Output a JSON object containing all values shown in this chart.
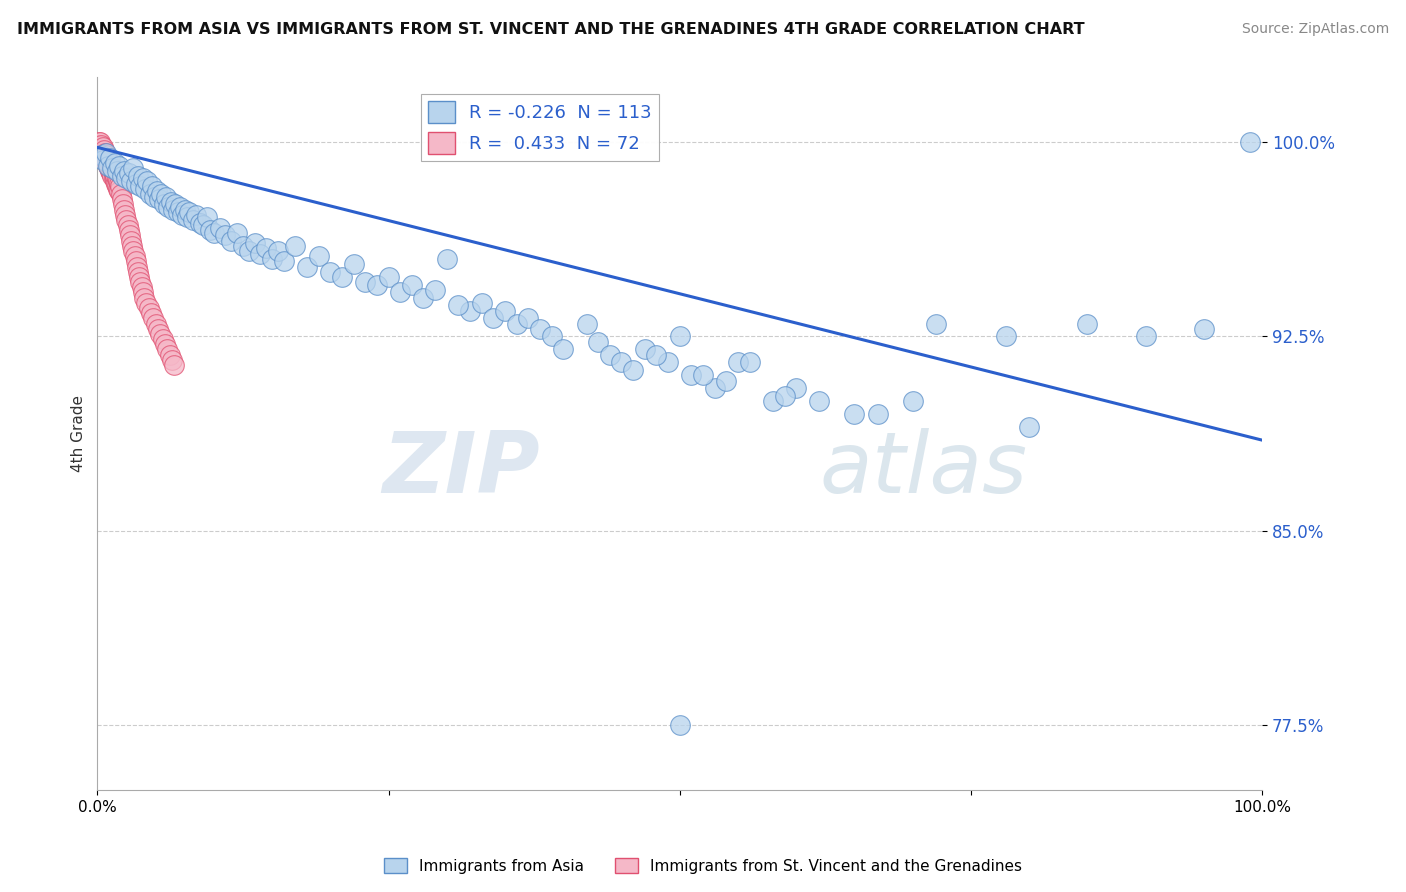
{
  "title": "IMMIGRANTS FROM ASIA VS IMMIGRANTS FROM ST. VINCENT AND THE GRENADINES 4TH GRADE CORRELATION CHART",
  "source": "Source: ZipAtlas.com",
  "ylabel": "4th Grade",
  "xlim": [
    0.0,
    100.0
  ],
  "ylim": [
    75.0,
    102.5
  ],
  "yticks": [
    77.5,
    85.0,
    92.5,
    100.0
  ],
  "ytick_labels": [
    "77.5%",
    "85.0%",
    "92.5%",
    "100.0%"
  ],
  "blue_R": -0.226,
  "blue_N": 113,
  "pink_R": 0.433,
  "pink_N": 72,
  "blue_color": "#b8d4ed",
  "blue_edge": "#5b8fc9",
  "pink_color": "#f5b8c8",
  "pink_edge": "#e05070",
  "trend_color": "#2b5fcc",
  "watermark_zip": "ZIP",
  "watermark_atlas": "atlas",
  "blue_scatter_x": [
    0.3,
    0.5,
    0.7,
    0.9,
    1.1,
    1.3,
    1.5,
    1.7,
    1.9,
    2.1,
    2.3,
    2.5,
    2.7,
    2.9,
    3.1,
    3.3,
    3.5,
    3.7,
    3.9,
    4.1,
    4.3,
    4.5,
    4.7,
    4.9,
    5.1,
    5.3,
    5.5,
    5.7,
    5.9,
    6.1,
    6.3,
    6.5,
    6.7,
    6.9,
    7.1,
    7.3,
    7.5,
    7.7,
    7.9,
    8.2,
    8.5,
    8.8,
    9.1,
    9.4,
    9.7,
    10.0,
    10.5,
    11.0,
    11.5,
    12.0,
    12.5,
    13.0,
    13.5,
    14.0,
    14.5,
    15.0,
    15.5,
    16.0,
    17.0,
    18.0,
    19.0,
    20.0,
    21.0,
    22.0,
    23.0,
    24.0,
    25.0,
    26.0,
    27.0,
    28.0,
    30.0,
    32.0,
    33.0,
    34.0,
    35.0,
    36.0,
    37.0,
    38.0,
    39.0,
    40.0,
    42.0,
    43.0,
    44.0,
    45.0,
    47.0,
    49.0,
    51.0,
    53.0,
    55.0,
    58.0,
    60.0,
    65.0,
    70.0,
    80.0,
    85.0,
    90.0,
    95.0,
    99.0,
    29.0,
    31.0,
    46.0,
    48.0,
    50.0,
    52.0,
    54.0,
    56.0,
    59.0,
    62.0,
    67.0,
    72.0,
    78.0
  ],
  "blue_scatter_y": [
    99.5,
    99.3,
    99.6,
    99.1,
    99.4,
    99.0,
    99.2,
    98.9,
    99.1,
    98.7,
    98.9,
    98.6,
    98.8,
    98.5,
    99.0,
    98.4,
    98.7,
    98.3,
    98.6,
    98.2,
    98.5,
    98.0,
    98.3,
    97.9,
    98.1,
    97.8,
    98.0,
    97.6,
    97.9,
    97.5,
    97.7,
    97.4,
    97.6,
    97.3,
    97.5,
    97.2,
    97.4,
    97.1,
    97.3,
    97.0,
    97.2,
    96.9,
    96.8,
    97.1,
    96.6,
    96.5,
    96.7,
    96.4,
    96.2,
    96.5,
    96.0,
    95.8,
    96.1,
    95.7,
    95.9,
    95.5,
    95.8,
    95.4,
    96.0,
    95.2,
    95.6,
    95.0,
    94.8,
    95.3,
    94.6,
    94.5,
    94.8,
    94.2,
    94.5,
    94.0,
    95.5,
    93.5,
    93.8,
    93.2,
    93.5,
    93.0,
    93.2,
    92.8,
    92.5,
    92.0,
    93.0,
    92.3,
    91.8,
    91.5,
    92.0,
    91.5,
    91.0,
    90.5,
    91.5,
    90.0,
    90.5,
    89.5,
    90.0,
    89.0,
    93.0,
    92.5,
    92.8,
    100.0,
    94.3,
    93.7,
    91.2,
    91.8,
    92.5,
    91.0,
    90.8,
    91.5,
    90.2,
    90.0,
    89.5,
    93.0,
    92.5
  ],
  "pink_scatter_x": [
    0.1,
    0.15,
    0.2,
    0.25,
    0.3,
    0.35,
    0.4,
    0.45,
    0.5,
    0.55,
    0.6,
    0.65,
    0.7,
    0.75,
    0.8,
    0.85,
    0.9,
    0.95,
    1.0,
    1.05,
    1.1,
    1.15,
    1.2,
    1.25,
    1.3,
    1.35,
    1.4,
    1.45,
    1.5,
    1.55,
    1.6,
    1.65,
    1.7,
    1.75,
    1.8,
    1.85,
    1.9,
    1.95,
    2.0,
    2.1,
    2.2,
    2.3,
    2.4,
    2.5,
    2.6,
    2.7,
    2.8,
    2.9,
    3.0,
    3.1,
    3.2,
    3.3,
    3.4,
    3.5,
    3.6,
    3.7,
    3.8,
    3.9,
    4.0,
    4.2,
    4.4,
    4.6,
    4.8,
    5.0,
    5.2,
    5.4,
    5.6,
    5.8,
    6.0,
    6.2,
    6.4,
    6.6
  ],
  "pink_scatter_y": [
    100.0,
    99.9,
    99.8,
    100.0,
    99.7,
    99.9,
    99.6,
    99.8,
    99.5,
    99.7,
    99.4,
    99.6,
    99.3,
    99.5,
    99.2,
    99.4,
    99.1,
    99.3,
    99.0,
    99.2,
    98.9,
    99.1,
    98.8,
    99.0,
    98.7,
    98.9,
    98.6,
    98.8,
    98.5,
    98.7,
    98.4,
    98.6,
    98.3,
    98.5,
    98.2,
    98.4,
    98.1,
    98.3,
    98.0,
    97.8,
    97.6,
    97.4,
    97.2,
    97.0,
    96.8,
    96.6,
    96.4,
    96.2,
    96.0,
    95.8,
    95.6,
    95.4,
    95.2,
    95.0,
    94.8,
    94.6,
    94.4,
    94.2,
    94.0,
    93.8,
    93.6,
    93.4,
    93.2,
    93.0,
    92.8,
    92.6,
    92.4,
    92.2,
    92.0,
    91.8,
    91.6,
    91.4
  ],
  "trend_y_start": 99.8,
  "trend_y_end": 88.5,
  "lone_dot_x": 50.0,
  "lone_dot_y": 77.5
}
